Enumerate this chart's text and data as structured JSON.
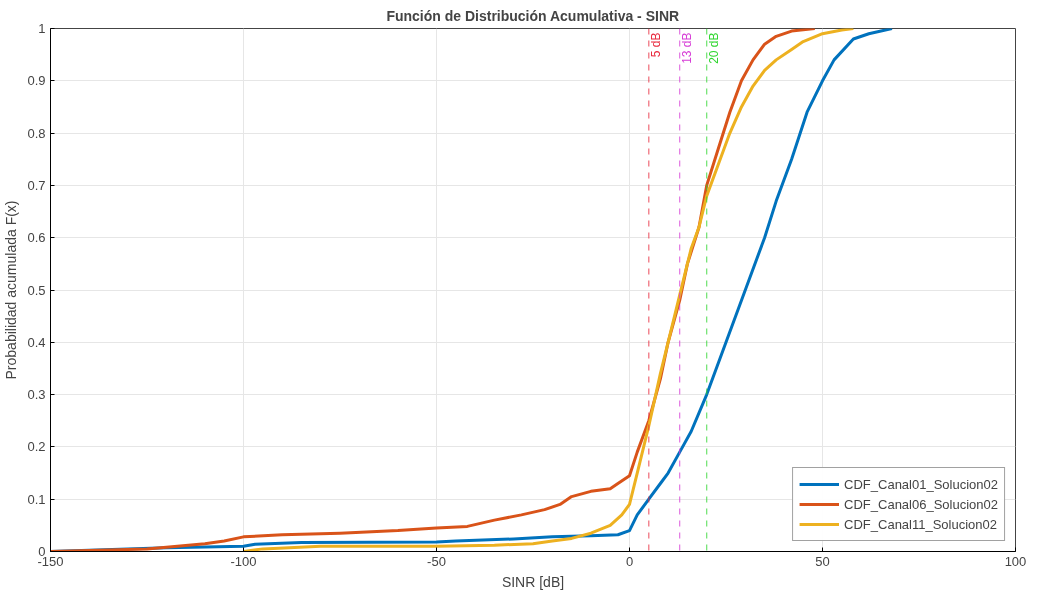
{
  "chart_data": {
    "type": "line",
    "title": "Función de Distribución Acumulativa - SINR",
    "xlabel": "SINR [dB]",
    "ylabel": "Probabilidad acumulada F(x)",
    "xlim": [
      -150,
      100
    ],
    "xticks": [
      -150,
      -100,
      -50,
      0,
      50,
      100
    ],
    "ylim": [
      0,
      1
    ],
    "yticks": [
      0,
      0.1,
      0.2,
      0.3,
      0.4,
      0.5,
      0.6,
      0.7,
      0.8,
      0.9,
      1
    ],
    "grid": true,
    "legend": "bottom right",
    "line_style": "solid",
    "series": [
      {
        "name": "CDF_Canal01_Solucion02",
        "color": "#0072bd",
        "x": [
          -150,
          -120,
          -100,
          -97,
          -85,
          -50,
          -45,
          -30,
          -20,
          -10,
          -3,
          0,
          2,
          5,
          8,
          10,
          13,
          16,
          20,
          25,
          30,
          35,
          38,
          42,
          46,
          50,
          53,
          58,
          62,
          68
        ],
        "values": [
          0,
          0.007,
          0.01,
          0.014,
          0.017,
          0.018,
          0.02,
          0.024,
          0.028,
          0.03,
          0.032,
          0.04,
          0.07,
          0.1,
          0.13,
          0.15,
          0.19,
          0.23,
          0.3,
          0.4,
          0.5,
          0.6,
          0.67,
          0.75,
          0.84,
          0.9,
          0.94,
          0.98,
          0.99,
          1
        ]
      },
      {
        "name": "CDF_Canal06_Solucion02",
        "color": "#d95319",
        "x": [
          -150,
          -125,
          -110,
          -105,
          -100,
          -90,
          -75,
          -60,
          -50,
          -42,
          -35,
          -28,
          -22,
          -18,
          -15,
          -10,
          -5,
          -3,
          0,
          2,
          5,
          8,
          10,
          13,
          15,
          18,
          20,
          23,
          26,
          29,
          32,
          35,
          38,
          42,
          48
        ],
        "values": [
          0,
          0.005,
          0.015,
          0.02,
          0.028,
          0.032,
          0.035,
          0.04,
          0.045,
          0.048,
          0.06,
          0.07,
          0.08,
          0.09,
          0.105,
          0.115,
          0.12,
          0.13,
          0.145,
          0.19,
          0.25,
          0.33,
          0.4,
          0.48,
          0.55,
          0.62,
          0.7,
          0.77,
          0.84,
          0.9,
          0.94,
          0.97,
          0.985,
          0.995,
          1
        ]
      },
      {
        "name": "CDF_Canal11_Solucion02",
        "color": "#edb120",
        "x": [
          -100,
          -95,
          -80,
          -50,
          -35,
          -25,
          -20,
          -15,
          -10,
          -5,
          -2,
          0,
          2,
          5,
          8,
          10,
          13,
          16,
          18,
          20,
          23,
          26,
          29,
          32,
          35,
          38,
          42,
          45,
          50,
          55,
          58
        ],
        "values": [
          0,
          0.005,
          0.01,
          0.01,
          0.012,
          0.015,
          0.02,
          0.025,
          0.035,
          0.05,
          0.07,
          0.09,
          0.15,
          0.24,
          0.34,
          0.4,
          0.49,
          0.58,
          0.62,
          0.68,
          0.74,
          0.8,
          0.85,
          0.89,
          0.92,
          0.94,
          0.96,
          0.975,
          0.99,
          0.997,
          1
        ]
      }
    ],
    "ref_lines": [
      {
        "axis": "x",
        "value": 5,
        "label": "5 dB",
        "color": "#e8283c",
        "line_style": "dashed"
      },
      {
        "axis": "x",
        "value": 13,
        "label": "13 dB",
        "color": "#d63bd6",
        "line_style": "dashed"
      },
      {
        "axis": "x",
        "value": 20,
        "label": "20 dB",
        "color": "#2ed62e",
        "line_style": "dashed"
      }
    ]
  }
}
